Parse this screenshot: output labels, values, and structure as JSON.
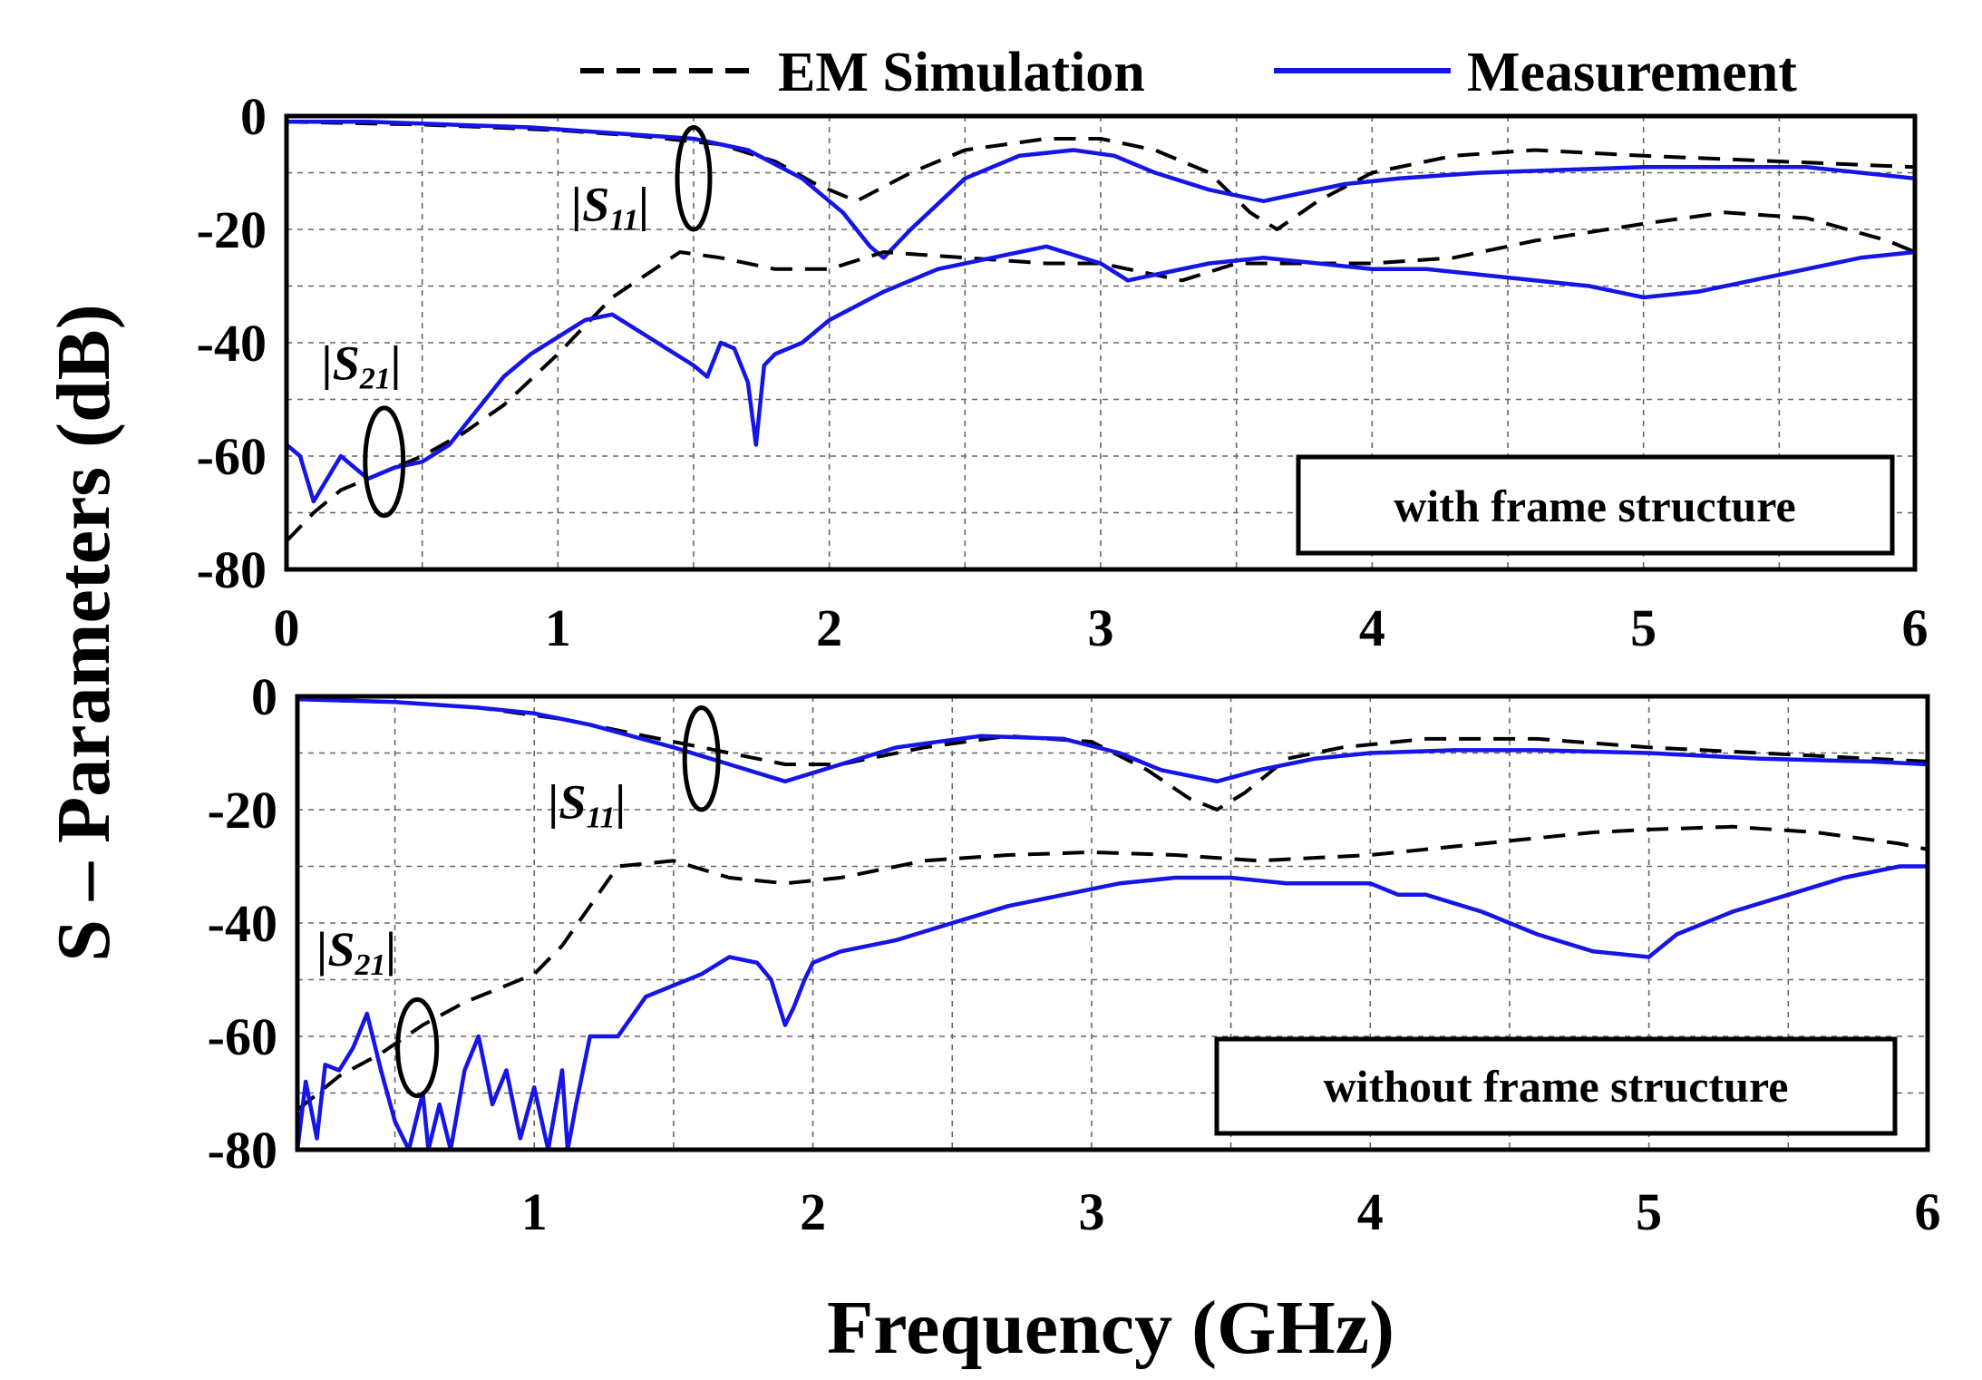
{
  "chart_data": {
    "legend": {
      "simulation": "EM Simulation",
      "measurement": "Measurement",
      "simulation_color": "#000000",
      "measurement_color": "#1515e6",
      "placement": "top-right"
    },
    "ylabel": "S – Parameters (dB)",
    "xlabel": "Frequency (GHz)",
    "panels": [
      {
        "type": "line",
        "box_label": "with frame structure",
        "box_placement": "bottom-right",
        "xlim": [
          0,
          6
        ],
        "ylim": [
          -80,
          0
        ],
        "xticks": [
          "0",
          "1",
          "2",
          "3",
          "4",
          "5",
          "6"
        ],
        "yticks": [
          "0",
          "-20",
          "-40",
          "-60",
          "-80"
        ],
        "grid": true,
        "annotations": [
          {
            "text": "|S",
            "sub": "11",
            "x": 1.05,
            "y": -18.5,
            "ellipse": {
              "cx": 1.5,
              "cy": -11,
              "rx": 0.06,
              "ry": 9
            }
          },
          {
            "text": "|S",
            "sub": "21",
            "x": 0.13,
            "y": -46.5,
            "ellipse": {
              "cx": 0.36,
              "cy": -61,
              "rx": 0.07,
              "ry": 9.5
            }
          }
        ],
        "series": [
          {
            "name": "S11 EM Simulation",
            "style": "dashed",
            "x": [
              0,
              0.5,
              1,
              1.3,
              1.6,
              1.8,
              1.95,
              2.1,
              2.3,
              2.5,
              2.8,
              3.0,
              3.2,
              3.4,
              3.55,
              3.65,
              3.8,
              4.0,
              4.3,
              4.6,
              5.0,
              5.5,
              6.0
            ],
            "y": [
              -1,
              -1.5,
              -2.5,
              -3.5,
              -5,
              -8,
              -12,
              -15,
              -10,
              -6,
              -4,
              -4,
              -6,
              -10,
              -17,
              -20,
              -15,
              -10,
              -7,
              -6,
              -7,
              -8,
              -9
            ]
          },
          {
            "name": "S11 Measurement",
            "style": "solid",
            "x": [
              0,
              0.3,
              0.6,
              0.9,
              1.2,
              1.5,
              1.7,
              1.9,
              2.05,
              2.15,
              2.2,
              2.3,
              2.5,
              2.7,
              2.9,
              3.05,
              3.2,
              3.4,
              3.6,
              3.7,
              3.9,
              4.1,
              4.4,
              4.7,
              5.0,
              5.3,
              5.6,
              5.9,
              6.0
            ],
            "y": [
              -1,
              -1,
              -1.5,
              -2,
              -3,
              -4,
              -6,
              -11,
              -17,
              -23,
              -25,
              -20,
              -11,
              -7,
              -6,
              -7,
              -10,
              -13,
              -15,
              -14,
              -12,
              -11,
              -10,
              -9.5,
              -9,
              -9,
              -9,
              -10.5,
              -11
            ]
          },
          {
            "name": "S21 EM Simulation",
            "style": "dashed",
            "x": [
              0,
              0.1,
              0.2,
              0.35,
              0.5,
              0.65,
              0.8,
              1.0,
              1.2,
              1.45,
              1.6,
              1.8,
              2.0,
              2.2,
              2.5,
              2.8,
              3.0,
              3.3,
              3.5,
              3.7,
              4.0,
              4.3,
              4.6,
              5.0,
              5.3,
              5.6,
              5.9,
              6.0
            ],
            "y": [
              -75,
              -70,
              -66,
              -63,
              -60,
              -56,
              -51,
              -42,
              -32,
              -24,
              -25,
              -27,
              -27,
              -24,
              -25,
              -26,
              -26,
              -29,
              -26,
              -26,
              -26,
              -25,
              -22,
              -19,
              -17,
              -18,
              -22,
              -24
            ]
          },
          {
            "name": "S21 Measurement",
            "style": "solid",
            "x": [
              0,
              0.05,
              0.1,
              0.15,
              0.2,
              0.3,
              0.4,
              0.5,
              0.6,
              0.7,
              0.8,
              0.9,
              1.0,
              1.1,
              1.2,
              1.3,
              1.4,
              1.5,
              1.55,
              1.6,
              1.65,
              1.7,
              1.73,
              1.76,
              1.8,
              1.9,
              2.0,
              2.2,
              2.4,
              2.6,
              2.8,
              3.0,
              3.1,
              3.2,
              3.4,
              3.6,
              3.8,
              4.0,
              4.2,
              4.4,
              4.6,
              4.8,
              5.0,
              5.2,
              5.4,
              5.6,
              5.8,
              6.0
            ],
            "y": [
              -58,
              -60,
              -68,
              -64,
              -60,
              -64,
              -62,
              -61,
              -58,
              -52,
              -46,
              -42,
              -39,
              -36,
              -35,
              -38,
              -41,
              -44,
              -46,
              -40,
              -41,
              -47,
              -58,
              -44,
              -42,
              -40,
              -36,
              -31,
              -27,
              -25,
              -23,
              -26,
              -29,
              -28,
              -26,
              -25,
              -26,
              -27,
              -27,
              -28,
              -29,
              -30,
              -32,
              -31,
              -29,
              -27,
              -25,
              -24
            ]
          }
        ]
      },
      {
        "type": "line",
        "box_label": "without frame structure",
        "box_placement": "bottom-right",
        "xlim": [
          0.15,
          6
        ],
        "ylim": [
          -80,
          0
        ],
        "xticks": [
          "1",
          "2",
          "3",
          "4",
          "5",
          "6"
        ],
        "yticks": [
          "0",
          "-20",
          "-40",
          "-60",
          "-80"
        ],
        "grid": true,
        "annotations": [
          {
            "text": "|S",
            "sub": "11",
            "x": 1.05,
            "y": -21.5,
            "ellipse": {
              "cx": 1.6,
              "cy": -11,
              "rx": 0.06,
              "ry": 9
            }
          },
          {
            "text": "|S",
            "sub": "21",
            "x": 0.22,
            "y": -47.5,
            "ellipse": {
              "cx": 0.58,
              "cy": -62,
              "rx": 0.07,
              "ry": 8.5
            }
          }
        ],
        "series": [
          {
            "name": "S11 EM Simulation",
            "style": "dashed",
            "x": [
              0.15,
              0.5,
              0.8,
              1.1,
              1.4,
              1.7,
              1.9,
              2.1,
              2.4,
              2.7,
              3.0,
              3.2,
              3.35,
              3.45,
              3.55,
              3.7,
              3.9,
              4.2,
              4.6,
              5.0,
              5.4,
              5.8,
              6.0
            ],
            "y": [
              -0.5,
              -1,
              -2,
              -4,
              -7,
              -10,
              -12,
              -12,
              -9,
              -7,
              -8,
              -13,
              -18,
              -20,
              -17,
              -11,
              -9,
              -7.5,
              -7.5,
              -9,
              -10,
              -11,
              -11.5
            ]
          },
          {
            "name": "S11 Measurement",
            "style": "solid",
            "x": [
              0.15,
              0.5,
              0.8,
              1.0,
              1.2,
              1.5,
              1.7,
              1.9,
              2.1,
              2.3,
              2.6,
              2.9,
              3.1,
              3.25,
              3.45,
              3.6,
              3.8,
              4.0,
              4.3,
              4.6,
              5.0,
              5.4,
              5.8,
              6.0
            ],
            "y": [
              -0.5,
              -1,
              -2,
              -3,
              -5,
              -9,
              -12,
              -15,
              -12,
              -9,
              -7,
              -7.5,
              -10,
              -13,
              -15,
              -13,
              -11,
              -10,
              -9.5,
              -9.5,
              -10,
              -11,
              -11.5,
              -12
            ]
          },
          {
            "name": "S21 EM Simulation",
            "style": "dashed",
            "x": [
              0.15,
              0.3,
              0.45,
              0.6,
              0.75,
              0.9,
              1.0,
              1.1,
              1.3,
              1.5,
              1.7,
              1.9,
              2.1,
              2.4,
              2.7,
              3.0,
              3.3,
              3.6,
              4.0,
              4.4,
              4.8,
              5.0,
              5.3,
              5.6,
              5.9,
              6.0
            ],
            "y": [
              -73,
              -67,
              -63,
              -58,
              -54,
              -51,
              -49,
              -44,
              -30,
              -29,
              -32,
              -33,
              -32,
              -29,
              -28,
              -27.5,
              -28,
              -29,
              -28,
              -26,
              -24,
              -23.5,
              -23,
              -24,
              -26,
              -27
            ]
          },
          {
            "name": "S21 Measurement",
            "style": "solid",
            "x": [
              0.15,
              0.18,
              0.22,
              0.25,
              0.3,
              0.35,
              0.4,
              0.45,
              0.5,
              0.55,
              0.6,
              0.62,
              0.66,
              0.7,
              0.75,
              0.8,
              0.85,
              0.9,
              0.95,
              1.0,
              1.05,
              1.1,
              1.12,
              1.15,
              1.2,
              1.3,
              1.4,
              1.5,
              1.6,
              1.7,
              1.8,
              1.85,
              1.9,
              1.93,
              1.97,
              2.0,
              2.1,
              2.3,
              2.5,
              2.7,
              2.9,
              3.1,
              3.3,
              3.5,
              3.7,
              3.9,
              4.0,
              4.1,
              4.2,
              4.4,
              4.6,
              4.8,
              5.0,
              5.1,
              5.3,
              5.5,
              5.7,
              5.9,
              6.0
            ],
            "y": [
              -80,
              -68,
              -78,
              -65,
              -66,
              -62,
              -56,
              -66,
              -75,
              -80,
              -70,
              -80,
              -72,
              -80,
              -66,
              -60,
              -72,
              -66,
              -78,
              -69,
              -80,
              -66,
              -80,
              -72,
              -60,
              -60,
              -53,
              -51,
              -49,
              -46,
              -47,
              -50,
              -58,
              -55,
              -50,
              -47,
              -45,
              -43,
              -40,
              -37,
              -35,
              -33,
              -32,
              -32,
              -33,
              -33,
              -33,
              -35,
              -35,
              -38,
              -42,
              -45,
              -46,
              -42,
              -38,
              -35,
              -32,
              -30,
              -30
            ]
          }
        ]
      }
    ]
  }
}
